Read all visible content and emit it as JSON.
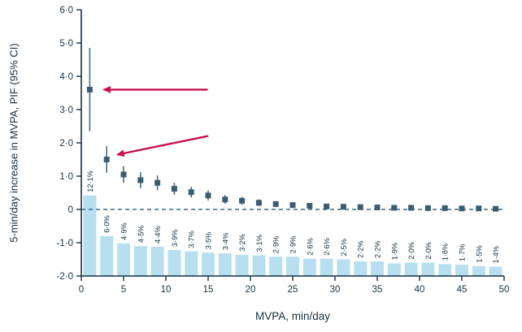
{
  "figure": {
    "ylabel": "5-min/day increase in MVPA, PIF (95% CI)",
    "xlabel": "MVPA, min/day"
  },
  "colors": {
    "bar": "#b7dff0",
    "point": "#3e5c6f",
    "error": "#4d6b7d",
    "axis": "#14303f",
    "zero_line": "#2e6f8e",
    "arrow": "#c8104b",
    "label_text": "#14303f"
  },
  "chart_data": {
    "type": "bar+scatter",
    "title": "",
    "xlabel": "MVPA, min/day",
    "ylabel": "5-min/day increase in MVPA, PIF (95% CI)",
    "xlim": [
      0,
      50
    ],
    "ylim": [
      -2,
      6
    ],
    "grid": false,
    "legend": "none",
    "y_ticks": [
      {
        "v": 6,
        "label": "6·0"
      },
      {
        "v": 5,
        "label": "5·0"
      },
      {
        "v": 4,
        "label": "4·0"
      },
      {
        "v": 3,
        "label": "3·0"
      },
      {
        "v": 2,
        "label": "2·0"
      },
      {
        "v": 1,
        "label": "1·0"
      },
      {
        "v": 0,
        "label": "0"
      },
      {
        "v": -1,
        "label": "-1·0"
      },
      {
        "v": -2,
        "label": "-2·0"
      }
    ],
    "x_ticks": [
      {
        "v": 0,
        "label": "0"
      },
      {
        "v": 5,
        "label": "5"
      },
      {
        "v": 10,
        "label": "10"
      },
      {
        "v": 15,
        "label": "15"
      },
      {
        "v": 20,
        "label": "20"
      },
      {
        "v": 25,
        "label": "25"
      },
      {
        "v": 30,
        "label": "30"
      },
      {
        "v": 35,
        "label": "35"
      },
      {
        "v": 40,
        "label": "40"
      },
      {
        "v": 45,
        "label": "45"
      },
      {
        "v": 50,
        "label": "50"
      }
    ],
    "zero_reference_line": {
      "y": 0,
      "style": "dashed"
    },
    "bars": {
      "note": "Light-blue bars show PIF %; drawn from plot baseline y=-2, height 0.2 y-units per PIF percent",
      "x": [
        1,
        3,
        5,
        7,
        9,
        11,
        13,
        15,
        17,
        19,
        21,
        23,
        25,
        27,
        29,
        31,
        33,
        35,
        37,
        39,
        41,
        43,
        45,
        47,
        49
      ],
      "pif_percent": [
        12.1,
        6.0,
        4.9,
        4.5,
        4.4,
        3.9,
        3.7,
        3.5,
        3.4,
        3.2,
        3.1,
        2.9,
        2.9,
        2.6,
        2.6,
        2.5,
        2.2,
        2.2,
        1.9,
        2.0,
        2.0,
        1.8,
        1.7,
        1.5,
        1.4
      ],
      "labels": [
        "12·1%",
        "6·0%",
        "4·9%",
        "4·5%",
        "4·4%",
        "3·9%",
        "3·7%",
        "3·5%",
        "3·4%",
        "3·2%",
        "3·1%",
        "2·9%",
        "2·9%",
        "2·6%",
        "2·6%",
        "2·5%",
        "2·2%",
        "2·2%",
        "1·9%",
        "2·0%",
        "2·0%",
        "1·8%",
        "1·7%",
        "1·5%",
        "1·4%"
      ],
      "label_rotation_deg": -90
    },
    "points": {
      "note": "Dark squares = point estimate of 5-min/day increase effect, vertical lines = 95% CI",
      "x": [
        1,
        3,
        5,
        7,
        9,
        11,
        13,
        15,
        17,
        19,
        21,
        23,
        25,
        27,
        29,
        31,
        33,
        35,
        37,
        39,
        41,
        43,
        45,
        47,
        49
      ],
      "estimate": [
        3.6,
        1.5,
        1.05,
        0.88,
        0.8,
        0.62,
        0.52,
        0.42,
        0.3,
        0.26,
        0.2,
        0.16,
        0.13,
        0.11,
        0.09,
        0.08,
        0.07,
        0.06,
        0.05,
        0.05,
        0.04,
        0.04,
        0.03,
        0.03,
        0.02
      ],
      "ci_low": [
        2.35,
        1.1,
        0.8,
        0.64,
        0.58,
        0.44,
        0.36,
        0.27,
        0.17,
        0.14,
        0.1,
        0.07,
        0.05,
        0.04,
        0.03,
        0.02,
        0.02,
        0.01,
        0.01,
        0.01,
        0,
        0,
        0,
        0,
        0
      ],
      "ci_high": [
        4.85,
        1.9,
        1.3,
        1.12,
        1.02,
        0.8,
        0.68,
        0.57,
        0.43,
        0.38,
        0.3,
        0.25,
        0.21,
        0.18,
        0.15,
        0.14,
        0.12,
        0.11,
        0.09,
        0.09,
        0.08,
        0.08,
        0.06,
        0.06,
        0.05
      ]
    },
    "annotations": [
      {
        "type": "arrow",
        "color": "#c8104b",
        "direction": "points-left",
        "target_x": 1,
        "target_estimate": 3.6
      },
      {
        "type": "arrow",
        "color": "#c8104b",
        "direction": "points-down-left",
        "target_x": 3,
        "target_estimate": 1.5
      }
    ]
  }
}
